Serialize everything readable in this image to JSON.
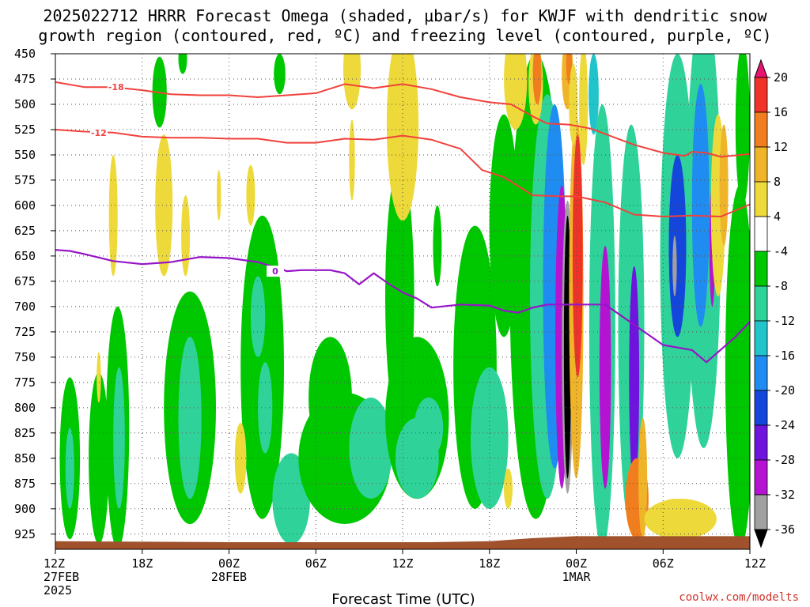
{
  "title": {
    "line1": "2025022712 HRRR Forecast Omega (shaded, μbar/s) for KWJF with dendritic snow",
    "line2": "growth region (contoured, red, ºC) and freezing level (contoured, purple, ºC)"
  },
  "xlabel": "Forecast Time (UTC)",
  "credit": "coolwx.com/modelts",
  "chart_data": {
    "type": "heatmap",
    "title": "2025022712 HRRR Forecast Omega (shaded, μbar/s) for KWJF with dendritic snow growth region (contoured, red, ºC) and freezing level (contoured, purple, ºC)",
    "xlabel": "Forecast Time (UTC)",
    "ylabel": "",
    "y_axis": {
      "unit": "hPa",
      "inverted": true,
      "ylim": [
        450,
        940
      ],
      "ticks": [
        450,
        475,
        500,
        525,
        550,
        575,
        600,
        625,
        650,
        675,
        700,
        725,
        750,
        775,
        800,
        825,
        850,
        875,
        900,
        925
      ]
    },
    "x_axis": {
      "unit": "forecast hour",
      "xlim": [
        0,
        48
      ],
      "ticks": [
        {
          "hour": 0,
          "lines": [
            "12Z",
            "27FEB",
            "2025"
          ]
        },
        {
          "hour": 6,
          "lines": [
            "18Z"
          ]
        },
        {
          "hour": 12,
          "lines": [
            "00Z",
            "28FEB"
          ]
        },
        {
          "hour": 18,
          "lines": [
            "06Z"
          ]
        },
        {
          "hour": 24,
          "lines": [
            "12Z"
          ]
        },
        {
          "hour": 30,
          "lines": [
            "18Z"
          ]
        },
        {
          "hour": 36,
          "lines": [
            "00Z",
            "1MAR"
          ]
        },
        {
          "hour": 42,
          "lines": [
            "06Z"
          ]
        },
        {
          "hour": 48,
          "lines": [
            "12Z"
          ]
        }
      ]
    },
    "grid": true,
    "colorbar": {
      "labels": [
        "20",
        "16",
        "12",
        "8",
        "4",
        "-4",
        "-8",
        "-12",
        "-16",
        "-20",
        "-24",
        "-28",
        "-32",
        "-36"
      ],
      "colors": [
        "#e8146e",
        "#f03228",
        "#f07d1e",
        "#f0b428",
        "#eed93a",
        "#ffffff",
        "#00c800",
        "#2fd39a",
        "#22c4cc",
        "#1e8cf0",
        "#1446dc",
        "#6e14dc",
        "#b414d2",
        "#a0a0a0",
        "#000000"
      ]
    },
    "omega_fields": [
      {
        "x": 1.0,
        "p": 850,
        "rx": 0.7,
        "rp": 80,
        "value": -6
      },
      {
        "x": 1.0,
        "p": 860,
        "rx": 0.3,
        "rp": 40,
        "value": -9
      },
      {
        "x": 3.0,
        "p": 850,
        "rx": 0.7,
        "rp": 85,
        "value": -6
      },
      {
        "x": 4.3,
        "p": 820,
        "rx": 0.8,
        "rp": 120,
        "value": -6
      },
      {
        "x": 4.4,
        "p": 830,
        "rx": 0.4,
        "rp": 70,
        "value": -9
      },
      {
        "x": 7.2,
        "p": 488,
        "rx": 0.5,
        "rp": 35,
        "value": -6
      },
      {
        "x": 9.3,
        "p": 800,
        "rx": 1.8,
        "rp": 115,
        "value": -6
      },
      {
        "x": 9.3,
        "p": 810,
        "rx": 0.8,
        "rp": 80,
        "value": -9
      },
      {
        "x": 8.8,
        "p": 455,
        "rx": 0.3,
        "rp": 15,
        "value": -6
      },
      {
        "x": 15.5,
        "p": 470,
        "rx": 0.4,
        "rp": 20,
        "value": -6
      },
      {
        "x": 14.3,
        "p": 760,
        "rx": 1.5,
        "rp": 150,
        "value": -6
      },
      {
        "x": 14.0,
        "p": 710,
        "rx": 0.5,
        "rp": 40,
        "value": -10
      },
      {
        "x": 14.5,
        "p": 800,
        "rx": 0.5,
        "rp": 45,
        "value": -10
      },
      {
        "x": 16.3,
        "p": 890,
        "rx": 1.3,
        "rp": 45,
        "value": -8
      },
      {
        "x": 19.0,
        "p": 790,
        "rx": 1.5,
        "rp": 60,
        "value": -6
      },
      {
        "x": 20.0,
        "p": 850,
        "rx": 3.2,
        "rp": 65,
        "value": -6
      },
      {
        "x": 21.8,
        "p": 840,
        "rx": 1.5,
        "rp": 50,
        "value": -9
      },
      {
        "x": 23.8,
        "p": 690,
        "rx": 1.0,
        "rp": 130,
        "value": -6
      },
      {
        "x": 25.0,
        "p": 810,
        "rx": 2.2,
        "rp": 80,
        "value": -6
      },
      {
        "x": 25.0,
        "p": 850,
        "rx": 1.5,
        "rp": 40,
        "value": -9
      },
      {
        "x": 25.8,
        "p": 820,
        "rx": 1.0,
        "rp": 30,
        "value": -11
      },
      {
        "x": 26.4,
        "p": 640,
        "rx": 0.3,
        "rp": 40,
        "value": -6
      },
      {
        "x": 29.0,
        "p": 760,
        "rx": 1.5,
        "rp": 140,
        "value": -6
      },
      {
        "x": 30.0,
        "p": 830,
        "rx": 1.3,
        "rp": 70,
        "value": -8
      },
      {
        "x": 31.0,
        "p": 620,
        "rx": 1.0,
        "rp": 110,
        "value": -6
      },
      {
        "x": 33.2,
        "p": 680,
        "rx": 1.8,
        "rp": 230,
        "value": -6
      },
      {
        "x": 34.0,
        "p": 690,
        "rx": 1.2,
        "rp": 200,
        "value": -10
      },
      {
        "x": 34.5,
        "p": 680,
        "rx": 0.8,
        "rp": 180,
        "value": -16
      },
      {
        "x": 35.0,
        "p": 730,
        "rx": 0.45,
        "rp": 150,
        "value": -28
      },
      {
        "x": 35.4,
        "p": 740,
        "rx": 0.4,
        "rp": 145,
        "value": -34
      },
      {
        "x": 35.4,
        "p": 740,
        "rx": 0.25,
        "rp": 130,
        "value": -40
      },
      {
        "x": 36.0,
        "p": 690,
        "rx": 0.5,
        "rp": 180,
        "value": 10
      },
      {
        "x": 36.1,
        "p": 650,
        "rx": 0.35,
        "rp": 120,
        "value": 18
      },
      {
        "x": 36.5,
        "p": 500,
        "rx": 0.3,
        "rp": 60,
        "value": 6
      },
      {
        "x": 35.4,
        "p": 470,
        "rx": 0.4,
        "rp": 35,
        "value": 10
      },
      {
        "x": 35.5,
        "p": 460,
        "rx": 0.2,
        "rp": 20,
        "value": 14
      },
      {
        "x": 35.8,
        "p": 500,
        "rx": 0.3,
        "rp": 40,
        "value": 5
      },
      {
        "x": 37.8,
        "p": 720,
        "rx": 0.9,
        "rp": 220,
        "value": -10
      },
      {
        "x": 38.0,
        "p": 760,
        "rx": 0.4,
        "rp": 120,
        "value": -28
      },
      {
        "x": 37.2,
        "p": 490,
        "rx": 0.35,
        "rp": 40,
        "value": -12
      },
      {
        "x": 39.8,
        "p": 720,
        "rx": 0.9,
        "rp": 200,
        "value": -10
      },
      {
        "x": 40.0,
        "p": 770,
        "rx": 0.35,
        "rp": 110,
        "value": -24
      },
      {
        "x": 43.0,
        "p": 650,
        "rx": 1.2,
        "rp": 200,
        "value": -9
      },
      {
        "x": 43.0,
        "p": 640,
        "rx": 0.6,
        "rp": 90,
        "value": -20
      },
      {
        "x": 42.8,
        "p": 660,
        "rx": 0.15,
        "rp": 30,
        "value": -33
      },
      {
        "x": 44.8,
        "p": 620,
        "rx": 1.2,
        "rp": 220,
        "value": -9
      },
      {
        "x": 44.6,
        "p": 600,
        "rx": 0.6,
        "rp": 120,
        "value": -18
      },
      {
        "x": 45.4,
        "p": 640,
        "rx": 0.2,
        "rp": 60,
        "value": -30
      },
      {
        "x": 47.5,
        "p": 520,
        "rx": 0.5,
        "rp": 80,
        "value": -7
      },
      {
        "x": 47.3,
        "p": 760,
        "rx": 1.0,
        "rp": 180,
        "value": -6
      },
      {
        "x": 40.2,
        "p": 890,
        "rx": 0.8,
        "rp": 40,
        "value": 14
      },
      {
        "x": 40.6,
        "p": 870,
        "rx": 0.3,
        "rp": 60,
        "value": 8
      },
      {
        "x": 42.8,
        "p": 905,
        "rx": 1.3,
        "rp": 15,
        "value": 6
      },
      {
        "x": 43.2,
        "p": 910,
        "rx": 2.5,
        "rp": 20,
        "value": 4.5
      },
      {
        "x": 45.8,
        "p": 600,
        "rx": 0.5,
        "rp": 90,
        "value": 6
      },
      {
        "x": 46.2,
        "p": 580,
        "rx": 0.3,
        "rp": 60,
        "value": 10
      },
      {
        "x": 20.5,
        "p": 465,
        "rx": 0.6,
        "rp": 40,
        "value": 5
      },
      {
        "x": 24.0,
        "p": 520,
        "rx": 1.1,
        "rp": 95,
        "value": 5
      },
      {
        "x": 20.5,
        "p": 555,
        "rx": 0.2,
        "rp": 40,
        "value": 5
      },
      {
        "x": 31.8,
        "p": 475,
        "rx": 0.8,
        "rp": 50,
        "value": 5
      },
      {
        "x": 33.2,
        "p": 480,
        "rx": 0.5,
        "rp": 40,
        "value": 7
      },
      {
        "x": 33.3,
        "p": 470,
        "rx": 0.3,
        "rp": 30,
        "value": 12
      },
      {
        "x": 7.5,
        "p": 600,
        "rx": 0.6,
        "rp": 70,
        "value": 5
      },
      {
        "x": 9.0,
        "p": 630,
        "rx": 0.3,
        "rp": 40,
        "value": 5
      },
      {
        "x": 4.0,
        "p": 610,
        "rx": 0.3,
        "rp": 60,
        "value": 5
      },
      {
        "x": 13.5,
        "p": 590,
        "rx": 0.3,
        "rp": 30,
        "value": 5
      },
      {
        "x": 3.0,
        "p": 770,
        "rx": 0.15,
        "rp": 25,
        "value": 5
      },
      {
        "x": 11.3,
        "p": 590,
        "rx": 0.15,
        "rp": 25,
        "value": 5
      },
      {
        "x": 12.8,
        "p": 850,
        "rx": 0.4,
        "rp": 35,
        "value": 5
      },
      {
        "x": 31.3,
        "p": 880,
        "rx": 0.3,
        "rp": 20,
        "value": 5
      }
    ],
    "dendritic_contours": [
      {
        "label": "-18",
        "color": "#f0413c",
        "points": [
          [
            0,
            478
          ],
          [
            2,
            483
          ],
          [
            4,
            483
          ],
          [
            6,
            486
          ],
          [
            8,
            490
          ],
          [
            10,
            491
          ],
          [
            12,
            491
          ],
          [
            14,
            493
          ],
          [
            16,
            491
          ],
          [
            18,
            489
          ],
          [
            20,
            480
          ],
          [
            22,
            484
          ],
          [
            24,
            480
          ],
          [
            26,
            485
          ],
          [
            28,
            493
          ],
          [
            30,
            498
          ],
          [
            31.5,
            500
          ],
          [
            33,
            512
          ],
          [
            34,
            519
          ],
          [
            35.5,
            520
          ],
          [
            37,
            524
          ],
          [
            38.5,
            532
          ],
          [
            40,
            540
          ],
          [
            42,
            548
          ],
          [
            43.5,
            551
          ],
          [
            44,
            547
          ],
          [
            45,
            548
          ],
          [
            46,
            552
          ],
          [
            48,
            549
          ]
        ],
        "labelAt": [
          4.2,
          483
        ]
      },
      {
        "label": "-12",
        "color": "#f0413c",
        "points": [
          [
            0,
            525
          ],
          [
            2,
            527
          ],
          [
            4,
            528
          ],
          [
            6,
            532
          ],
          [
            8,
            533
          ],
          [
            10,
            533
          ],
          [
            12,
            534
          ],
          [
            14,
            534
          ],
          [
            16,
            538
          ],
          [
            18,
            538
          ],
          [
            20,
            534
          ],
          [
            22,
            535
          ],
          [
            24,
            531
          ],
          [
            26,
            535
          ],
          [
            28,
            544
          ],
          [
            29.5,
            565
          ],
          [
            31,
            572
          ],
          [
            33,
            590
          ],
          [
            35,
            591
          ],
          [
            36,
            591
          ],
          [
            38,
            597
          ],
          [
            40,
            609
          ],
          [
            42,
            611
          ],
          [
            44,
            610
          ],
          [
            46,
            611
          ],
          [
            48,
            599
          ]
        ],
        "labelAt": [
          3,
          528
        ]
      }
    ],
    "freezing_contour": {
      "label": "0",
      "color": "#9614c8",
      "points": [
        [
          0,
          644
        ],
        [
          1,
          645
        ],
        [
          2,
          648
        ],
        [
          4,
          655
        ],
        [
          6,
          658
        ],
        [
          8,
          656
        ],
        [
          10,
          651
        ],
        [
          12,
          652
        ],
        [
          14,
          656
        ],
        [
          16,
          665
        ],
        [
          17,
          664
        ],
        [
          19,
          664
        ],
        [
          20,
          667
        ],
        [
          21,
          678
        ],
        [
          22,
          667
        ],
        [
          23,
          677
        ],
        [
          24,
          686
        ],
        [
          25,
          692
        ],
        [
          26,
          701
        ],
        [
          28,
          698
        ],
        [
          30,
          699
        ],
        [
          31,
          704
        ],
        [
          32,
          706
        ],
        [
          33,
          701
        ],
        [
          34,
          698
        ],
        [
          36,
          698
        ],
        [
          38,
          698
        ],
        [
          40,
          718
        ],
        [
          42,
          738
        ],
        [
          44,
          743
        ],
        [
          45,
          755
        ],
        [
          47,
          730
        ],
        [
          48,
          715
        ]
      ],
      "labelAt": [
        15.2,
        665
      ]
    },
    "terrain": {
      "label": "surface",
      "color": "#a0522d",
      "points": [
        [
          0,
          932
        ],
        [
          12,
          933
        ],
        [
          26,
          933
        ],
        [
          30,
          932
        ],
        [
          33,
          929
        ],
        [
          36,
          927
        ],
        [
          42,
          927
        ],
        [
          48,
          927
        ]
      ]
    }
  }
}
